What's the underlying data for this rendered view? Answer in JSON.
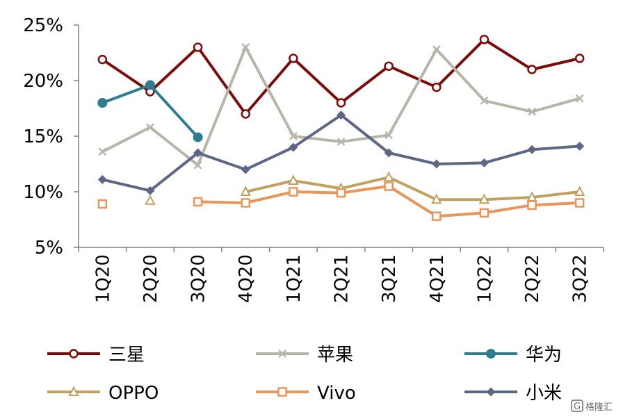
{
  "chart_data": {
    "type": "line",
    "categories": [
      "1Q20",
      "2Q20",
      "3Q20",
      "4Q20",
      "1Q21",
      "2Q21",
      "3Q21",
      "4Q21",
      "1Q22",
      "2Q22",
      "3Q22"
    ],
    "y_ticks": [
      "5%",
      "10%",
      "15%",
      "20%",
      "25%"
    ],
    "ylim": [
      5,
      25
    ],
    "grid": false,
    "legend_position": "bottom",
    "series": [
      {
        "name": "三星",
        "color": "#7b0c0c",
        "marker": "circle-open",
        "values": [
          21.9,
          19.0,
          23.0,
          17.0,
          22.0,
          18.0,
          21.3,
          19.4,
          23.7,
          21.0,
          22.0
        ]
      },
      {
        "name": "苹果",
        "color": "#b5b5a8",
        "marker": "x",
        "values": [
          13.6,
          15.8,
          12.4,
          23.0,
          15.0,
          14.5,
          15.1,
          22.8,
          18.2,
          17.2,
          18.4
        ]
      },
      {
        "name": "华为",
        "color": "#2e7d8e",
        "marker": "circle-filled",
        "values": [
          18.0,
          19.6,
          14.9,
          null,
          null,
          null,
          null,
          null,
          null,
          null,
          null
        ]
      },
      {
        "name": "OPPO",
        "color": "#bfa160",
        "marker": "triangle-open",
        "values": [
          null,
          9.2,
          null,
          10.0,
          11.0,
          10.3,
          11.3,
          9.3,
          9.3,
          9.5,
          10.0
        ]
      },
      {
        "name": "Vivo",
        "color": "#e8965a",
        "marker": "square-open",
        "values": [
          8.9,
          null,
          9.1,
          9.0,
          10.0,
          9.9,
          10.5,
          7.8,
          8.1,
          8.8,
          9.0
        ]
      },
      {
        "name": "小米",
        "color": "#5d6782",
        "marker": "diamond-filled",
        "values": [
          11.1,
          10.1,
          13.5,
          12.0,
          14.0,
          16.9,
          13.5,
          12.5,
          12.6,
          13.8,
          14.1
        ]
      }
    ]
  },
  "watermark": "格隆汇"
}
